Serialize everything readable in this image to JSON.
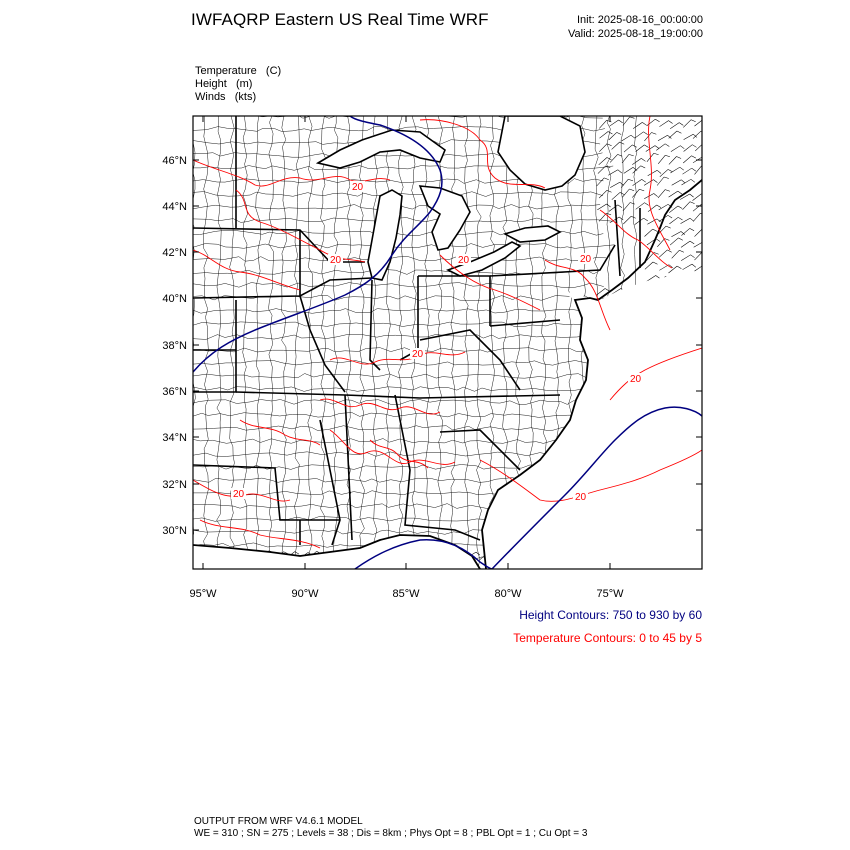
{
  "header": {
    "title": "IWFAQRP Eastern US Real Time WRF",
    "init": "Init: 2025-08-16_00:00:00",
    "valid": "Valid: 2025-08-18_19:00:00"
  },
  "fields": [
    "Temperature   (C)",
    "Height   (m)",
    "Winds   (kts)"
  ],
  "map": {
    "lat_labels": [
      "46°N",
      "44°N",
      "42°N",
      "40°N",
      "38°N",
      "36°N",
      "34°N",
      "32°N",
      "30°N"
    ],
    "lon_labels": [
      "95°W",
      "90°W",
      "85°W",
      "80°W",
      "75°W"
    ],
    "contour_labels": [
      "20",
      "20",
      "20",
      "20",
      "20",
      "20",
      "20",
      "20"
    ],
    "colors": {
      "temperature": "#ff0000",
      "height": "#000080",
      "boundaries": "#000000",
      "wind_barbs": "#000000"
    }
  },
  "legend": {
    "height": "Height Contours: 750 to 930 by 60",
    "temperature": "Temperature Contours: 0 to 45 by 5"
  },
  "footer": {
    "line1": "OUTPUT FROM WRF V4.6.1 MODEL",
    "line2": "WE = 310 ; SN = 275 ; Levels = 38 ; Dis = 8km ; Phys Opt = 8 ; PBL Opt = 1 ; Cu Opt = 3"
  }
}
